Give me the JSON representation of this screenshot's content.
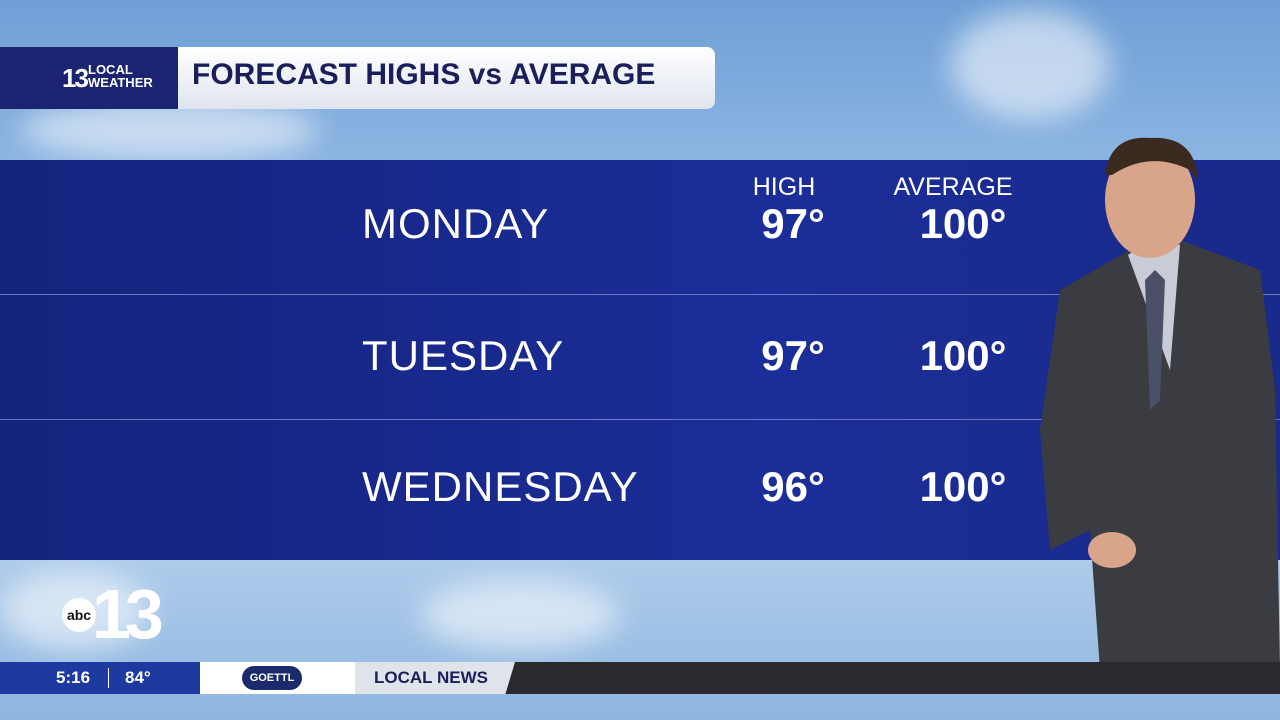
{
  "header": {
    "logo": {
      "number": "13",
      "line1": "LOCAL",
      "line2": "WEATHER"
    },
    "title": "FORECAST HIGHS vs AVERAGE"
  },
  "table": {
    "columns": [
      "HIGH",
      "AVERAGE"
    ],
    "rows": [
      [
        "MONDAY",
        "97°",
        "100°"
      ],
      [
        "TUESDAY",
        "97°",
        "100°"
      ],
      [
        "WEDNESDAY",
        "96°",
        "100°"
      ]
    ]
  },
  "station_logo": {
    "network": "abc",
    "number": "13"
  },
  "ticker": {
    "time": "5:16",
    "temperature": "84°",
    "sponsor": "GOETTL",
    "section": "LOCAL NEWS"
  }
}
